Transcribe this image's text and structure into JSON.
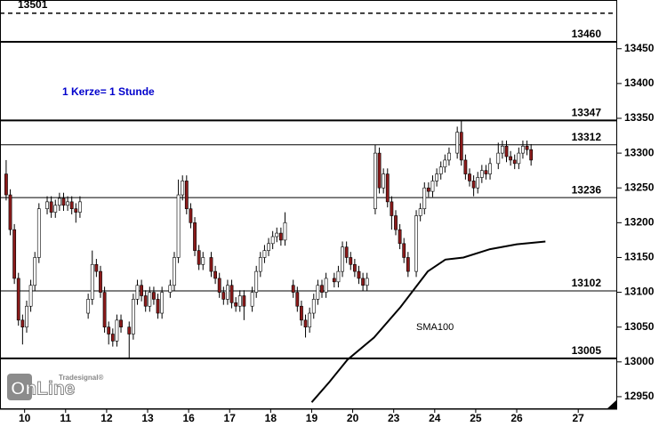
{
  "chart_data": {
    "type": "candlestick",
    "note": "1 Kerze= 1 Stunde",
    "logo": {
      "small": "Tradesignal®",
      "big": "OnLine"
    },
    "xlim": [
      -0.6,
      14.45
    ],
    "ylim": [
      12932,
      13520
    ],
    "yticks": [
      12950,
      13000,
      13050,
      13100,
      13150,
      13200,
      13250,
      13300,
      13350,
      13400,
      13450
    ],
    "xticks": [
      {
        "value": 0,
        "label": "10"
      },
      {
        "value": 1,
        "label": "11"
      },
      {
        "value": 2,
        "label": "12"
      },
      {
        "value": 3,
        "label": "13"
      },
      {
        "value": 4,
        "label": "16"
      },
      {
        "value": 5,
        "label": "17"
      },
      {
        "value": 6,
        "label": "18"
      },
      {
        "value": 7,
        "label": "19"
      },
      {
        "value": 8,
        "label": "20"
      },
      {
        "value": 9,
        "label": "23"
      },
      {
        "value": 10,
        "label": "24"
      },
      {
        "value": 11,
        "label": "25"
      },
      {
        "value": 12,
        "label": "26"
      },
      {
        "value": 13.5,
        "label": "27"
      }
    ],
    "up_color": "#ffffff",
    "down_color": "#8b1a1a",
    "levels": [
      {
        "value": 13501,
        "style": "dashed",
        "side": "left"
      },
      {
        "value": 13460,
        "style": "thick",
        "side": "right"
      },
      {
        "value": 13347,
        "style": "thick",
        "side": "right"
      },
      {
        "value": 13312,
        "style": "thin",
        "side": "right"
      },
      {
        "value": 13236,
        "style": "thin",
        "side": "right"
      },
      {
        "value": 13102,
        "style": "thin",
        "side": "right"
      },
      {
        "value": 13005,
        "style": "thick",
        "side": "right"
      }
    ],
    "sma": {
      "name": "SMA100",
      "color": "#000000",
      "x": [
        7.0,
        7.43,
        7.87,
        8.52,
        9.17,
        9.83,
        10.26,
        10.7,
        11.35,
        12.0,
        12.7
      ],
      "values": [
        12942,
        12971,
        13003,
        13035,
        13079,
        13130,
        13147,
        13150,
        13162,
        13169,
        13173
      ]
    },
    "x": [
      -0.45,
      -0.35,
      -0.25,
      -0.15,
      -0.05,
      0.05,
      0.15,
      0.25,
      0.35,
      0.55,
      0.65,
      0.75,
      0.85,
      0.95,
      1.05,
      1.15,
      1.25,
      1.35,
      1.55,
      1.65,
      1.75,
      1.85,
      1.95,
      2.05,
      2.15,
      2.25,
      2.35,
      2.55,
      2.65,
      2.75,
      2.85,
      2.95,
      3.05,
      3.15,
      3.25,
      3.35,
      3.55,
      3.65,
      3.75,
      3.85,
      3.95,
      4.05,
      4.15,
      4.25,
      4.35,
      4.55,
      4.65,
      4.75,
      4.85,
      4.95,
      5.05,
      5.15,
      5.25,
      5.35,
      5.55,
      5.65,
      5.75,
      5.85,
      5.95,
      6.05,
      6.15,
      6.25,
      6.35,
      6.55,
      6.65,
      6.75,
      6.85,
      6.95,
      7.05,
      7.15,
      7.25,
      7.35,
      7.55,
      7.65,
      7.75,
      7.85,
      7.95,
      8.05,
      8.15,
      8.25,
      8.35,
      8.55,
      8.65,
      8.75,
      8.85,
      8.95,
      9.05,
      9.15,
      9.25,
      9.35,
      9.55,
      9.65,
      9.75,
      9.85,
      9.95,
      10.05,
      10.15,
      10.25,
      10.35,
      10.55,
      10.65,
      10.75,
      10.85,
      10.95,
      11.05,
      11.15,
      11.25,
      11.35,
      11.55,
      11.65,
      11.75,
      11.85,
      11.95,
      12.05,
      12.15,
      12.25,
      12.35
    ],
    "open": [
      13270,
      13240,
      13190,
      13120,
      13060,
      13050,
      13080,
      13110,
      13150,
      13220,
      13230,
      13215,
      13225,
      13235,
      13225,
      13230,
      13220,
      13215,
      13070,
      13090,
      13140,
      13130,
      13100,
      13050,
      13040,
      13030,
      13060,
      13050,
      13040,
      13090,
      13110,
      13095,
      13080,
      13100,
      13090,
      13070,
      13100,
      13110,
      13150,
      13240,
      13260,
      13220,
      13200,
      13160,
      13140,
      13150,
      13130,
      13120,
      13100,
      13090,
      13110,
      13085,
      13080,
      13095,
      13080,
      13100,
      13130,
      13150,
      13160,
      13170,
      13180,
      13185,
      13175,
      13110,
      13100,
      13080,
      13060,
      13050,
      13070,
      13090,
      13110,
      13100,
      13120,
      13115,
      13130,
      13165,
      13150,
      13140,
      13130,
      13120,
      13110,
      13220,
      13300,
      13250,
      13270,
      13230,
      13210,
      13190,
      13170,
      13150,
      13130,
      13210,
      13220,
      13250,
      13245,
      13260,
      13270,
      13280,
      13290,
      13300,
      13330,
      13290,
      13270,
      13260,
      13250,
      13265,
      13275,
      13270,
      13285,
      13300,
      13310,
      13295,
      13290,
      13285,
      13300,
      13310,
      13305
    ],
    "high": [
      13290,
      13248,
      13198,
      13128,
      13068,
      13088,
      13118,
      13158,
      13228,
      13238,
      13238,
      13233,
      13243,
      13243,
      13238,
      13238,
      13228,
      13238,
      13098,
      13160,
      13148,
      13138,
      13108,
      13058,
      13048,
      13068,
      13068,
      13058,
      13098,
      13118,
      13118,
      13103,
      13108,
      13108,
      13098,
      13108,
      13118,
      13158,
      13262,
      13268,
      13268,
      13228,
      13208,
      13168,
      13158,
      13158,
      13138,
      13128,
      13108,
      13118,
      13118,
      13093,
      13103,
      13103,
      13108,
      13138,
      13158,
      13168,
      13178,
      13188,
      13193,
      13193,
      13215,
      13118,
      13108,
      13088,
      13068,
      13078,
      13098,
      13118,
      13118,
      13128,
      13128,
      13138,
      13173,
      13173,
      13158,
      13148,
      13138,
      13128,
      13128,
      13312,
      13308,
      13278,
      13278,
      13238,
      13218,
      13198,
      13178,
      13158,
      13218,
      13228,
      13258,
      13258,
      13268,
      13278,
      13288,
      13298,
      13308,
      13338,
      13347,
      13298,
      13278,
      13268,
      13273,
      13283,
      13283,
      13293,
      13315,
      13318,
      13318,
      13303,
      13298,
      13308,
      13318,
      13318,
      13313
    ],
    "low": [
      13232,
      13182,
      13112,
      13052,
      13025,
      13042,
      13072,
      13102,
      13142,
      13212,
      13207,
      13207,
      13217,
      13217,
      13217,
      13212,
      13200,
      13207,
      13062,
      13082,
      13122,
      13092,
      13042,
      13025,
      13022,
      13022,
      13042,
      13005,
      13032,
      13082,
      13087,
      13072,
      13072,
      13082,
      13062,
      13062,
      13092,
      13102,
      13142,
      13232,
      13212,
      13192,
      13152,
      13132,
      13132,
      13122,
      13112,
      13092,
      13082,
      13082,
      13077,
      13072,
      13072,
      13060,
      13072,
      13092,
      13122,
      13142,
      13152,
      13162,
      13172,
      13167,
      13167,
      13092,
      13072,
      13052,
      13035,
      13042,
      13062,
      13082,
      13092,
      13092,
      13107,
      13107,
      13122,
      13142,
      13132,
      13122,
      13112,
      13102,
      13102,
      13212,
      13242,
      13242,
      13222,
      13190,
      13182,
      13162,
      13142,
      13122,
      13122,
      13202,
      13212,
      13237,
      13237,
      13252,
      13262,
      13272,
      13282,
      13292,
      13282,
      13262,
      13252,
      13238,
      13242,
      13257,
      13262,
      13262,
      13277,
      13292,
      13287,
      13282,
      13277,
      13277,
      13292,
      13297,
      13282
    ],
    "close": [
      13240,
      13190,
      13120,
      13060,
      13050,
      13080,
      13110,
      13150,
      13220,
      13230,
      13215,
      13225,
      13235,
      13225,
      13230,
      13220,
      13215,
      13230,
      13090,
      13140,
      13130,
      13100,
      13050,
      13040,
      13030,
      13060,
      13050,
      13040,
      13090,
      13110,
      13095,
      13080,
      13100,
      13090,
      13070,
      13100,
      13110,
      13150,
      13240,
      13260,
      13220,
      13200,
      13160,
      13140,
      13150,
      13130,
      13120,
      13100,
      13090,
      13110,
      13085,
      13080,
      13095,
      13080,
      13100,
      13130,
      13150,
      13160,
      13170,
      13180,
      13185,
      13175,
      13200,
      13100,
      13080,
      13060,
      13050,
      13070,
      13090,
      13110,
      13100,
      13120,
      13115,
      13130,
      13165,
      13150,
      13140,
      13130,
      13120,
      13110,
      13120,
      13300,
      13250,
      13270,
      13230,
      13210,
      13190,
      13170,
      13150,
      13130,
      13210,
      13220,
      13250,
      13245,
      13260,
      13270,
      13280,
      13290,
      13300,
      13330,
      13290,
      13270,
      13260,
      13250,
      13265,
      13275,
      13270,
      13285,
      13300,
      13310,
      13295,
      13290,
      13285,
      13300,
      13310,
      13305,
      13290
    ]
  }
}
